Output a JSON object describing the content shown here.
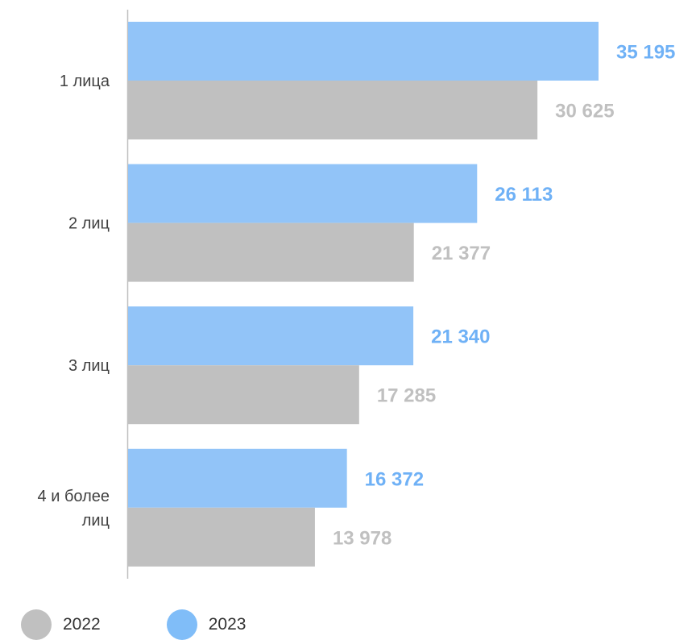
{
  "chart_data": {
    "type": "bar",
    "orientation": "horizontal",
    "categories": [
      [
        "1 лица"
      ],
      [
        "2 лиц"
      ],
      [
        "3 лиц"
      ],
      [
        "4 и более",
        "лиц"
      ]
    ],
    "series": [
      {
        "name": "2023",
        "color": "#92c4f8",
        "label_color": "#6fb1f6",
        "values": [
          35195,
          26113,
          21340,
          16372
        ],
        "labels": [
          "35 195",
          "26 113",
          "21 340",
          "16 372"
        ]
      },
      {
        "name": "2022",
        "color": "#c0c0c0",
        "label_color": "#c0c0c0",
        "values": [
          30625,
          21377,
          17285,
          13978
        ],
        "labels": [
          "30 625",
          "21 377",
          "17 285",
          "13 978"
        ]
      }
    ],
    "legend_position": "bottom-left",
    "grid": false
  },
  "legend": {
    "items": [
      {
        "label": "2022",
        "color": "#c0c0c0"
      },
      {
        "label": "2023",
        "color": "#80bdf8"
      }
    ]
  }
}
